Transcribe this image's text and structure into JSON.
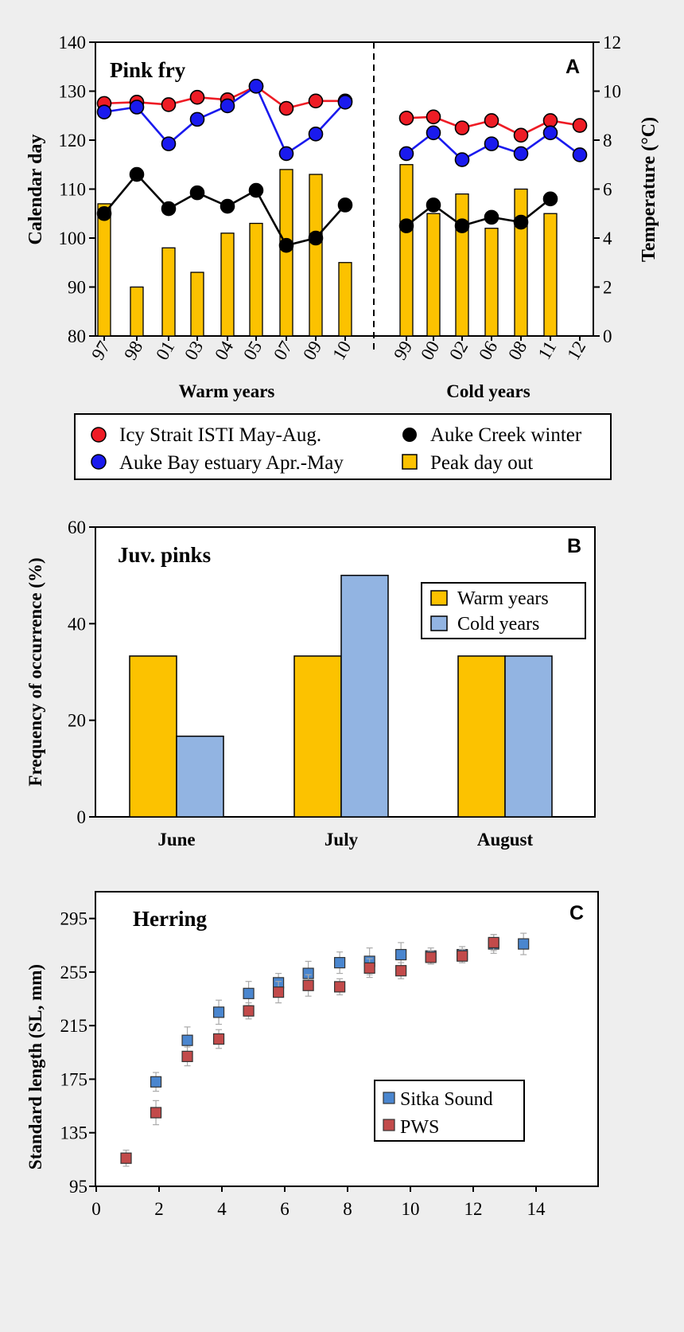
{
  "chart_data": [
    {
      "panel": "A",
      "type": "bar",
      "title": "Pink fry",
      "panel_label": "A",
      "ylabel": "Calendar day",
      "y2label": "Temperature (°C)",
      "ylim": [
        80,
        140
      ],
      "yticks": [
        80,
        90,
        100,
        110,
        120,
        130,
        140
      ],
      "y2lim": [
        0,
        12
      ],
      "y2ticks": [
        0,
        2,
        4,
        6,
        8,
        10,
        12
      ],
      "groups": [
        "Warm years",
        "Cold years"
      ],
      "categories": [
        "97",
        "98",
        "01",
        "03",
        "04",
        "05",
        "07",
        "09",
        "10",
        "99",
        "00",
        "02",
        "06",
        "08",
        "11",
        "12"
      ],
      "category_group": [
        0,
        0,
        0,
        0,
        0,
        0,
        0,
        0,
        0,
        1,
        1,
        1,
        1,
        1,
        1,
        1
      ],
      "series": [
        {
          "name": "Peak day out",
          "kind": "bar",
          "axis": "left",
          "color": "#fcc200",
          "values": [
            107,
            90,
            98,
            93,
            101,
            103,
            114,
            113,
            95,
            115,
            105,
            109,
            102,
            110,
            105,
            null
          ]
        },
        {
          "name": "Icy Strait ISTI May-Aug.",
          "kind": "line",
          "axis": "right",
          "color": "#ee1c25",
          "values": [
            9.5,
            9.55,
            9.45,
            9.75,
            9.65,
            10.2,
            9.3,
            9.6,
            9.6,
            8.9,
            8.95,
            8.5,
            8.8,
            8.2,
            8.8,
            8.6
          ]
        },
        {
          "name": "Auke Bay estuary Apr.-May",
          "kind": "line",
          "axis": "right",
          "color": "#1a1aee",
          "values": [
            9.15,
            9.35,
            7.85,
            8.85,
            9.4,
            10.2,
            7.45,
            8.25,
            9.55,
            7.45,
            8.3,
            7.2,
            7.85,
            7.45,
            8.3,
            7.4
          ]
        },
        {
          "name": "Auke Creek winter",
          "kind": "line",
          "axis": "right",
          "color": "#000000",
          "values": [
            5.0,
            6.6,
            5.2,
            5.85,
            5.3,
            5.95,
            3.7,
            4.0,
            5.35,
            4.5,
            5.35,
            4.5,
            4.85,
            4.65,
            5.6,
            null
          ]
        }
      ],
      "legend": [
        "Icy Strait ISTI May-Aug.",
        "Auke Creek winter",
        "Auke Bay estuary Apr.-May",
        "Peak day out"
      ]
    },
    {
      "panel": "B",
      "type": "bar",
      "title": "Juv. pinks",
      "panel_label": "B",
      "ylabel": "Frequency of occurrence (%)",
      "ylim": [
        0,
        60
      ],
      "yticks": [
        0,
        20,
        40,
        60
      ],
      "categories": [
        "June",
        "July",
        "August"
      ],
      "series": [
        {
          "name": "Warm years",
          "color": "#fcc200",
          "values": [
            33.3,
            33.3,
            33.3
          ]
        },
        {
          "name": "Cold years",
          "color": "#92b4e2",
          "values": [
            16.7,
            50.0,
            33.3
          ]
        }
      ]
    },
    {
      "panel": "C",
      "type": "scatter",
      "title": "Herring",
      "panel_label": "C",
      "ylabel": "Standard length (SL, mm)",
      "xlim": [
        0,
        16
      ],
      "xticks": [
        0,
        2,
        4,
        6,
        8,
        10,
        12,
        14
      ],
      "ylim": [
        95,
        315
      ],
      "yticks": [
        95,
        135,
        175,
        215,
        255,
        295
      ],
      "series": [
        {
          "name": "Sitka Sound",
          "color": "#4a86cf",
          "x": [
            1.9,
            2.9,
            3.9,
            4.85,
            5.8,
            6.75,
            7.75,
            8.7,
            9.7,
            10.65,
            11.65,
            12.65,
            13.6
          ],
          "y": [
            173,
            204,
            225,
            239,
            247,
            254,
            262,
            263,
            268,
            267,
            268,
            276,
            276
          ],
          "err": [
            7,
            10,
            9,
            9,
            7,
            9,
            8,
            10,
            9,
            6,
            6,
            7,
            8
          ]
        },
        {
          "name": "PWS",
          "color": "#c24a4a",
          "x": [
            0.95,
            1.9,
            2.9,
            3.9,
            4.85,
            5.8,
            6.75,
            7.75,
            8.7,
            9.7,
            10.65,
            11.65,
            12.65
          ],
          "y": [
            116,
            150,
            192,
            205,
            226,
            240,
            245,
            244,
            258,
            256,
            266,
            267,
            277
          ],
          "err": [
            6,
            9,
            7,
            7,
            6,
            8,
            8,
            6,
            7,
            6,
            5,
            5,
            6
          ]
        }
      ]
    }
  ]
}
